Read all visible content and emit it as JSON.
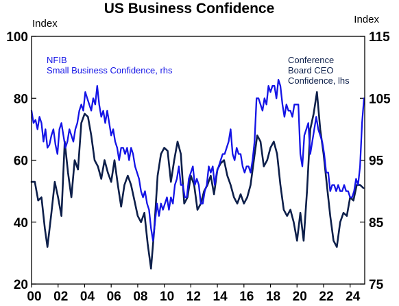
{
  "chart_data": {
    "type": "line",
    "title": "US Business Confidence",
    "left_axis_label": "Index",
    "right_axis_label": "Index",
    "x_ticks": [
      "00",
      "02",
      "04",
      "06",
      "08",
      "10",
      "12",
      "14",
      "16",
      "18",
      "20",
      "22",
      "24"
    ],
    "x_range": [
      2000.0,
      2025.1
    ],
    "left_ylim": [
      20,
      100
    ],
    "left_ticks": [
      20,
      40,
      60,
      80,
      100
    ],
    "right_ylim": [
      75,
      115
    ],
    "right_ticks": [
      75,
      85,
      95,
      105,
      115
    ],
    "grid": false,
    "series": [
      {
        "name": "Conference Board CEO Confidence, lhs",
        "annotation_lines": [
          "Conference",
          "Board CEO",
          "Confidence, lhs"
        ],
        "axis": "left",
        "color": "#0d1f4a",
        "points": [
          [
            2000.0,
            53
          ],
          [
            2000.25,
            53
          ],
          [
            2000.5,
            47
          ],
          [
            2000.75,
            48
          ],
          [
            2001.0,
            38
          ],
          [
            2001.2,
            32
          ],
          [
            2001.5,
            43
          ],
          [
            2001.75,
            53
          ],
          [
            2002.0,
            48
          ],
          [
            2002.25,
            42
          ],
          [
            2002.5,
            66
          ],
          [
            2002.75,
            56
          ],
          [
            2003.0,
            48
          ],
          [
            2003.25,
            60
          ],
          [
            2003.5,
            57
          ],
          [
            2003.75,
            72
          ],
          [
            2004.0,
            75
          ],
          [
            2004.25,
            74
          ],
          [
            2004.5,
            68
          ],
          [
            2004.75,
            60
          ],
          [
            2005.0,
            58
          ],
          [
            2005.25,
            54
          ],
          [
            2005.5,
            60
          ],
          [
            2005.75,
            56
          ],
          [
            2006.0,
            53
          ],
          [
            2006.25,
            60
          ],
          [
            2006.5,
            52
          ],
          [
            2006.75,
            45
          ],
          [
            2007.0,
            52
          ],
          [
            2007.25,
            55
          ],
          [
            2007.5,
            52
          ],
          [
            2007.75,
            47
          ],
          [
            2008.0,
            42
          ],
          [
            2008.25,
            40
          ],
          [
            2008.5,
            43
          ],
          [
            2008.75,
            33
          ],
          [
            2009.0,
            25
          ],
          [
            2009.25,
            38
          ],
          [
            2009.5,
            55
          ],
          [
            2009.75,
            62
          ],
          [
            2010.0,
            64
          ],
          [
            2010.25,
            63
          ],
          [
            2010.5,
            53
          ],
          [
            2010.75,
            60
          ],
          [
            2011.0,
            66
          ],
          [
            2011.25,
            62
          ],
          [
            2011.5,
            46
          ],
          [
            2011.75,
            48
          ],
          [
            2012.0,
            55
          ],
          [
            2012.25,
            52
          ],
          [
            2012.5,
            44
          ],
          [
            2012.75,
            46
          ],
          [
            2013.0,
            50
          ],
          [
            2013.25,
            52
          ],
          [
            2013.5,
            55
          ],
          [
            2013.75,
            49
          ],
          [
            2014.0,
            57
          ],
          [
            2014.25,
            59
          ],
          [
            2014.5,
            60
          ],
          [
            2014.75,
            55
          ],
          [
            2015.0,
            52
          ],
          [
            2015.25,
            48
          ],
          [
            2015.5,
            46
          ],
          [
            2015.75,
            49
          ],
          [
            2016.0,
            46
          ],
          [
            2016.25,
            48
          ],
          [
            2016.5,
            52
          ],
          [
            2016.75,
            60
          ],
          [
            2017.0,
            68
          ],
          [
            2017.25,
            66
          ],
          [
            2017.5,
            58
          ],
          [
            2017.75,
            60
          ],
          [
            2018.0,
            64
          ],
          [
            2018.25,
            66
          ],
          [
            2018.5,
            62
          ],
          [
            2018.75,
            52
          ],
          [
            2019.0,
            44
          ],
          [
            2019.25,
            42
          ],
          [
            2019.5,
            44
          ],
          [
            2019.75,
            40
          ],
          [
            2020.0,
            34
          ],
          [
            2020.25,
            43
          ],
          [
            2020.5,
            34
          ],
          [
            2020.75,
            50
          ],
          [
            2021.0,
            70
          ],
          [
            2021.25,
            75
          ],
          [
            2021.5,
            82
          ],
          [
            2021.75,
            70
          ],
          [
            2022.0,
            62
          ],
          [
            2022.25,
            52
          ],
          [
            2022.5,
            42
          ],
          [
            2022.75,
            34
          ],
          [
            2023.0,
            32
          ],
          [
            2023.25,
            40
          ],
          [
            2023.5,
            43
          ],
          [
            2023.75,
            42
          ],
          [
            2024.0,
            48
          ],
          [
            2024.25,
            47
          ],
          [
            2024.5,
            52
          ],
          [
            2024.75,
            52
          ],
          [
            2025.0,
            51
          ]
        ]
      },
      {
        "name": "NFIB Small Business Confidence, rhs",
        "annotation_lines": [
          "NFIB",
          "Small Business Confidence, rhs"
        ],
        "axis": "right",
        "color": "#1414e6",
        "points": [
          [
            2000.0,
            103
          ],
          [
            2000.15,
            101
          ],
          [
            2000.3,
            101.5
          ],
          [
            2000.45,
            100
          ],
          [
            2000.6,
            102
          ],
          [
            2000.75,
            101
          ],
          [
            2000.9,
            98
          ],
          [
            2001.05,
            100
          ],
          [
            2001.2,
            97
          ],
          [
            2001.35,
            97.5
          ],
          [
            2001.5,
            99
          ],
          [
            2001.65,
            100
          ],
          [
            2001.8,
            97.5
          ],
          [
            2001.95,
            96
          ],
          [
            2002.1,
            100
          ],
          [
            2002.25,
            101
          ],
          [
            2002.4,
            99
          ],
          [
            2002.55,
            97
          ],
          [
            2002.7,
            98
          ],
          [
            2002.85,
            100
          ],
          [
            2003.0,
            99
          ],
          [
            2003.15,
            98
          ],
          [
            2003.3,
            100
          ],
          [
            2003.45,
            101
          ],
          [
            2003.6,
            103
          ],
          [
            2003.75,
            104
          ],
          [
            2003.9,
            103
          ],
          [
            2004.05,
            106
          ],
          [
            2004.2,
            105
          ],
          [
            2004.35,
            104
          ],
          [
            2004.5,
            103
          ],
          [
            2004.65,
            105
          ],
          [
            2004.8,
            104
          ],
          [
            2004.95,
            107
          ],
          [
            2005.1,
            104
          ],
          [
            2005.25,
            102
          ],
          [
            2005.4,
            103
          ],
          [
            2005.55,
            101
          ],
          [
            2005.7,
            103
          ],
          [
            2005.85,
            101
          ],
          [
            2006.0,
            99
          ],
          [
            2006.15,
            100
          ],
          [
            2006.3,
            98
          ],
          [
            2006.45,
            97
          ],
          [
            2006.6,
            95
          ],
          [
            2006.75,
            97
          ],
          [
            2006.9,
            97
          ],
          [
            2007.05,
            96
          ],
          [
            2007.2,
            97
          ],
          [
            2007.35,
            95
          ],
          [
            2007.5,
            97
          ],
          [
            2007.65,
            96
          ],
          [
            2007.8,
            94
          ],
          [
            2007.95,
            93
          ],
          [
            2008.1,
            92
          ],
          [
            2008.25,
            90
          ],
          [
            2008.4,
            89
          ],
          [
            2008.55,
            90
          ],
          [
            2008.7,
            88
          ],
          [
            2008.85,
            87
          ],
          [
            2009.0,
            84
          ],
          [
            2009.15,
            82
          ],
          [
            2009.3,
            85
          ],
          [
            2009.45,
            88
          ],
          [
            2009.6,
            86
          ],
          [
            2009.75,
            88
          ],
          [
            2009.9,
            87
          ],
          [
            2010.05,
            88
          ],
          [
            2010.2,
            89
          ],
          [
            2010.35,
            87
          ],
          [
            2010.5,
            89
          ],
          [
            2010.65,
            88
          ],
          [
            2010.8,
            91
          ],
          [
            2010.95,
            92
          ],
          [
            2011.1,
            94
          ],
          [
            2011.25,
            91
          ],
          [
            2011.4,
            91
          ],
          [
            2011.55,
            89
          ],
          [
            2011.7,
            89
          ],
          [
            2011.85,
            92
          ],
          [
            2012.0,
            93
          ],
          [
            2012.15,
            94
          ],
          [
            2012.3,
            91
          ],
          [
            2012.45,
            92
          ],
          [
            2012.6,
            91
          ],
          [
            2012.75,
            88
          ],
          [
            2012.9,
            88
          ],
          [
            2013.05,
            90
          ],
          [
            2013.2,
            91
          ],
          [
            2013.35,
            94
          ],
          [
            2013.5,
            93
          ],
          [
            2013.65,
            94
          ],
          [
            2013.8,
            91
          ],
          [
            2013.95,
            93
          ],
          [
            2014.1,
            94
          ],
          [
            2014.25,
            95
          ],
          [
            2014.4,
            96
          ],
          [
            2014.55,
            96
          ],
          [
            2014.7,
            97
          ],
          [
            2014.85,
            98
          ],
          [
            2015.0,
            100
          ],
          [
            2015.15,
            96
          ],
          [
            2015.3,
            95
          ],
          [
            2015.45,
            97
          ],
          [
            2015.6,
            96
          ],
          [
            2015.75,
            96
          ],
          [
            2015.9,
            94
          ],
          [
            2016.05,
            93
          ],
          [
            2016.2,
            94
          ],
          [
            2016.35,
            94
          ],
          [
            2016.5,
            93
          ],
          [
            2016.65,
            95
          ],
          [
            2016.8,
            98
          ],
          [
            2016.95,
            105
          ],
          [
            2017.1,
            105
          ],
          [
            2017.25,
            104
          ],
          [
            2017.4,
            103
          ],
          [
            2017.55,
            105
          ],
          [
            2017.7,
            104
          ],
          [
            2017.85,
            107
          ],
          [
            2018.0,
            106
          ],
          [
            2018.15,
            107
          ],
          [
            2018.3,
            107
          ],
          [
            2018.45,
            105
          ],
          [
            2018.6,
            108
          ],
          [
            2018.75,
            107
          ],
          [
            2018.9,
            104
          ],
          [
            2019.05,
            102
          ],
          [
            2019.2,
            104
          ],
          [
            2019.35,
            103
          ],
          [
            2019.5,
            103
          ],
          [
            2019.65,
            102
          ],
          [
            2019.8,
            104
          ],
          [
            2019.95,
            104
          ],
          [
            2020.1,
            104
          ],
          [
            2020.25,
            96
          ],
          [
            2020.4,
            94
          ],
          [
            2020.55,
            99
          ],
          [
            2020.7,
            100
          ],
          [
            2020.85,
            101
          ],
          [
            2021.0,
            96
          ],
          [
            2021.15,
            98
          ],
          [
            2021.3,
            100
          ],
          [
            2021.45,
            102
          ],
          [
            2021.6,
            100
          ],
          [
            2021.75,
            99
          ],
          [
            2021.9,
            98
          ],
          [
            2022.05,
            96
          ],
          [
            2022.2,
            93
          ],
          [
            2022.35,
            93
          ],
          [
            2022.5,
            90
          ],
          [
            2022.65,
            91
          ],
          [
            2022.8,
            91
          ],
          [
            2022.95,
            90
          ],
          [
            2023.1,
            91
          ],
          [
            2023.25,
            90
          ],
          [
            2023.4,
            90
          ],
          [
            2023.55,
            91
          ],
          [
            2023.7,
            90
          ],
          [
            2023.85,
            90
          ],
          [
            2024.0,
            89
          ],
          [
            2024.15,
            89
          ],
          [
            2024.3,
            90
          ],
          [
            2024.45,
            92
          ],
          [
            2024.6,
            91
          ],
          [
            2024.75,
            94
          ],
          [
            2024.9,
            101
          ],
          [
            2025.05,
            105
          ]
        ]
      }
    ]
  }
}
